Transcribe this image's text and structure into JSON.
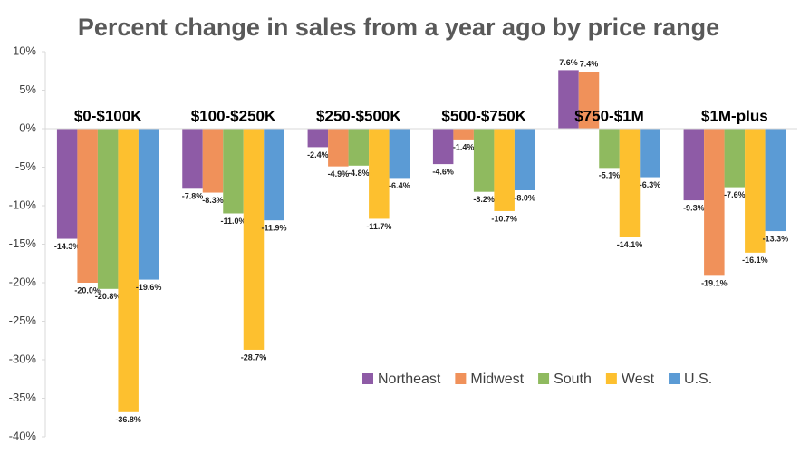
{
  "chart_data": {
    "type": "bar",
    "title": "Percent change in sales from a year ago by price range",
    "categories": [
      "$0-$100K",
      "$100-$250K",
      "$250-$500K",
      "$500-$750K",
      "$750-$1M",
      "$1M-plus"
    ],
    "series": [
      {
        "name": "Northeast",
        "color": "#8e5ba6",
        "values": [
          -14.3,
          -7.8,
          -2.4,
          -4.6,
          7.6,
          -9.3
        ],
        "value_labels": [
          "-14.3%",
          "-7.8%",
          "-2.4%",
          "-4.6%",
          "7.6%",
          "-9.3%"
        ]
      },
      {
        "name": "Midwest",
        "color": "#f0915a",
        "values": [
          -20.0,
          -8.3,
          -4.9,
          -1.4,
          7.4,
          -19.1
        ],
        "value_labels": [
          "-20.0%",
          "-8.3%",
          "-4.9%",
          "-1.4%",
          "7.4%",
          "-19.1%"
        ]
      },
      {
        "name": "South",
        "color": "#8fba5f",
        "values": [
          -20.8,
          -11.0,
          -4.8,
          -8.2,
          -5.1,
          -7.6
        ],
        "value_labels": [
          "-20.8%",
          "-11.0%",
          "-4.8%",
          "-8.2%",
          "-5.1%",
          "-7.6%"
        ]
      },
      {
        "name": "West",
        "color": "#fdc02f",
        "values": [
          -36.8,
          -28.7,
          -11.7,
          -10.7,
          -14.1,
          -16.1
        ],
        "value_labels": [
          "-36.8%",
          "-28.7%",
          "-11.7%",
          "-10.7%",
          "-14.1%",
          "-16.1%"
        ]
      },
      {
        "name": "U.S.",
        "color": "#5b9bd5",
        "values": [
          -19.6,
          -11.9,
          -6.4,
          -8.0,
          -6.3,
          -13.3
        ],
        "value_labels": [
          "-19.6%",
          "-11.9%",
          "-6.4%",
          "-8.0%",
          "-6.3%",
          "-13.3%"
        ]
      }
    ],
    "ylim": [
      -40,
      10
    ],
    "yticks": [
      {
        "value": 10,
        "label": "10%"
      },
      {
        "value": 5,
        "label": "5%"
      },
      {
        "value": 0,
        "label": "0%"
      },
      {
        "value": -5,
        "label": "-5%"
      },
      {
        "value": -10,
        "label": "-10%"
      },
      {
        "value": -15,
        "label": "-15%"
      },
      {
        "value": -20,
        "label": "-20%"
      },
      {
        "value": -25,
        "label": "-25%"
      },
      {
        "value": -30,
        "label": "-30%"
      },
      {
        "value": -35,
        "label": "-35%"
      },
      {
        "value": -40,
        "label": "-40%"
      }
    ],
    "grid": false,
    "legend": "lower-right"
  }
}
